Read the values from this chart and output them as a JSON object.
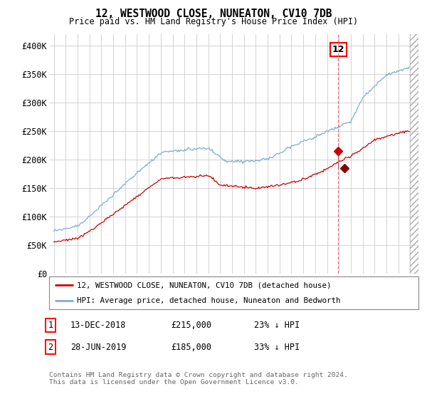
{
  "title": "12, WESTWOOD CLOSE, NUNEATON, CV10 7DB",
  "subtitle": "Price paid vs. HM Land Registry's House Price Index (HPI)",
  "ylim": [
    0,
    420000
  ],
  "yticks": [
    0,
    50000,
    100000,
    150000,
    200000,
    250000,
    300000,
    350000,
    400000
  ],
  "ytick_labels": [
    "£0",
    "£50K",
    "£100K",
    "£150K",
    "£200K",
    "£250K",
    "£300K",
    "£350K",
    "£400K"
  ],
  "x_start_year": 1995,
  "x_end_year": 2025,
  "hpi_color": "#7bafd4",
  "price_color": "#cc0000",
  "sale1_year": 2018.958,
  "sale1_price": 215000,
  "sale1_date": "13-DEC-2018",
  "sale1_hpi_diff": "23% ↓ HPI",
  "sale2_year": 2019.458,
  "sale2_price": 185000,
  "sale2_date": "28-JUN-2019",
  "sale2_hpi_diff": "33% ↓ HPI",
  "legend_label_red": "12, WESTWOOD CLOSE, NUNEATON, CV10 7DB (detached house)",
  "legend_label_blue": "HPI: Average price, detached house, Nuneaton and Bedworth",
  "footnote": "Contains HM Land Registry data © Crown copyright and database right 2024.\nThis data is licensed under the Open Government Licence v3.0.",
  "box_number": "12",
  "vline_year": 2018.958,
  "background_color": "#ffffff",
  "grid_color": "#cccccc"
}
